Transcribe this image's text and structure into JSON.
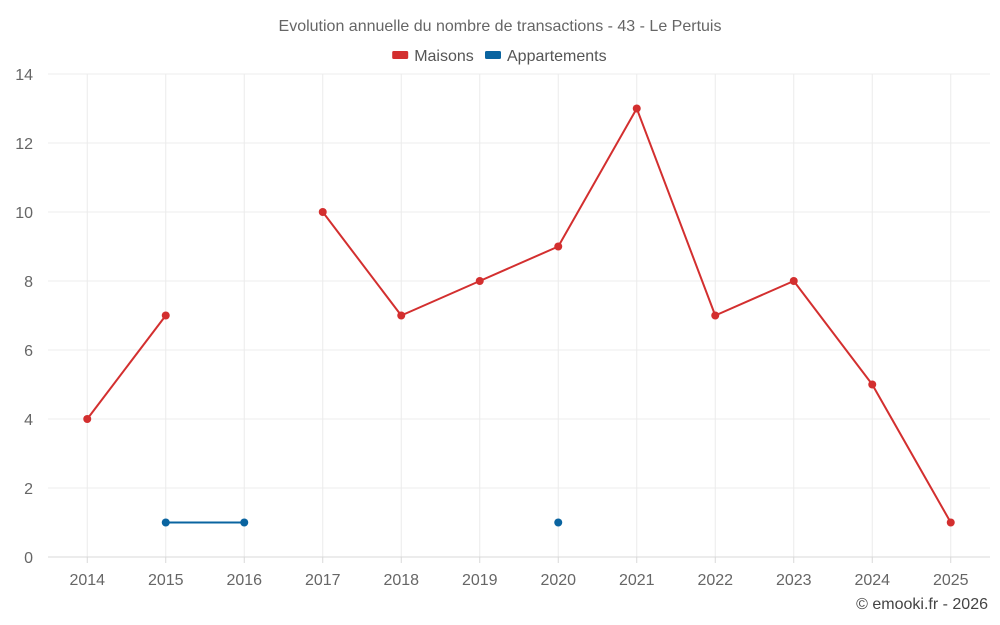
{
  "chart_data": {
    "type": "line",
    "title": "Evolution annuelle du nombre de transactions - 43 - Le Pertuis",
    "categories": [
      "2014",
      "2015",
      "2016",
      "2017",
      "2018",
      "2019",
      "2020",
      "2021",
      "2022",
      "2023",
      "2024",
      "2025"
    ],
    "ylim": [
      0,
      14
    ],
    "yticks": [
      0,
      2,
      4,
      6,
      8,
      10,
      12,
      14
    ],
    "grid": true,
    "legend_position": "top-center",
    "series": [
      {
        "name": "Maisons",
        "color": "#d32f2f",
        "values": [
          4,
          7,
          null,
          10,
          7,
          8,
          9,
          13,
          7,
          8,
          5,
          1
        ]
      },
      {
        "name": "Appartements",
        "color": "#0a64a0",
        "values": [
          null,
          1,
          1,
          null,
          null,
          null,
          1,
          null,
          null,
          null,
          null,
          null
        ]
      }
    ]
  },
  "credit": "© emooki.fr - 2026"
}
